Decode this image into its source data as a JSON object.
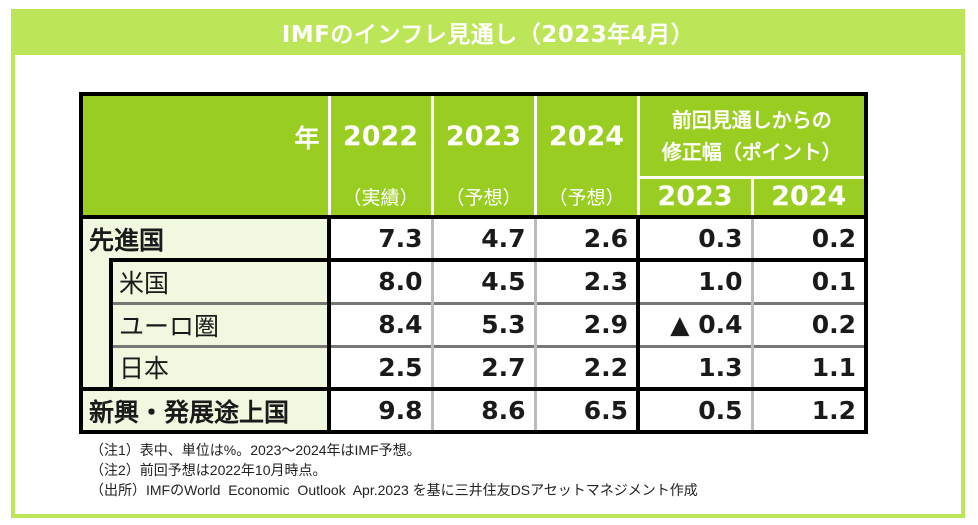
{
  "title": "IMFのインフレ見通し（2023年4月）",
  "table": {
    "header": {
      "year_label": "年",
      "years": [
        {
          "year": "2022",
          "note": "（実績）"
        },
        {
          "year": "2023",
          "note": "（予想）"
        },
        {
          "year": "2024",
          "note": "（予想）"
        }
      ],
      "revision_label_line1": "前回見通しからの",
      "revision_label_line2": "修正幅（ポイント）",
      "revision_years": [
        "2023",
        "2024"
      ]
    },
    "rows": [
      {
        "label": "先進国",
        "v2022": "7.3",
        "v2023": "4.7",
        "v2024": "2.6",
        "rev2023": "0.3",
        "rev2024": "0.2"
      },
      {
        "label": "米国",
        "v2022": "8.0",
        "v2023": "4.5",
        "v2024": "2.3",
        "rev2023": "1.0",
        "rev2024": "0.1"
      },
      {
        "label": "ユーロ圏",
        "v2022": "8.4",
        "v2023": "5.3",
        "v2024": "2.9",
        "rev2023": "▲ 0.4",
        "rev2024": "0.2"
      },
      {
        "label": "日本",
        "v2022": "2.5",
        "v2023": "2.7",
        "v2024": "2.2",
        "rev2023": "1.3",
        "rev2024": "1.1"
      },
      {
        "label": "新興・発展途上国",
        "v2022": "9.8",
        "v2023": "8.6",
        "v2024": "6.5",
        "rev2023": "0.5",
        "rev2024": "1.2"
      }
    ]
  },
  "footnotes": [
    "（注1）表中、単位は%。2023～2024年はIMF予想。",
    "（注2）前回予想は2022年10月時点。",
    "（出所）IMFのWorld  Economic  Outlook  Apr.2023 を基に三井住友DSアセットマネジメント作成"
  ],
  "colors": {
    "title_bg": "#bce658",
    "header_bg": "#9acd22",
    "label_bg": "#f0f8e0"
  }
}
